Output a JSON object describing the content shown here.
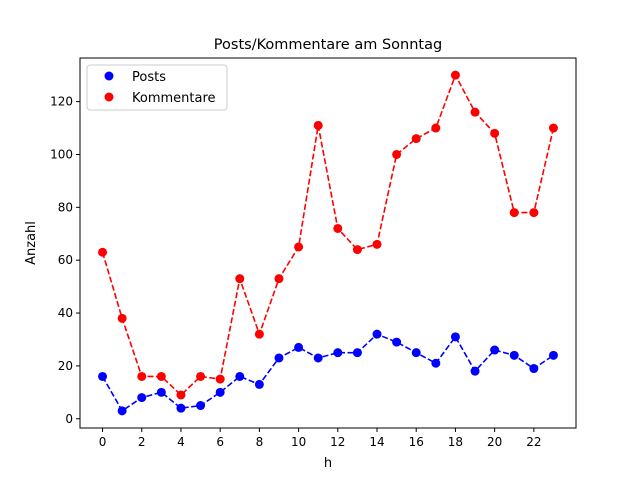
{
  "chart_data": {
    "type": "line",
    "title": "Posts/Kommentare am Sonntag",
    "xlabel": "h",
    "ylabel": "Anzahl",
    "x": [
      0,
      1,
      2,
      3,
      4,
      5,
      6,
      7,
      8,
      9,
      10,
      11,
      12,
      13,
      14,
      15,
      16,
      17,
      18,
      19,
      20,
      21,
      22,
      23
    ],
    "xticks": [
      0,
      2,
      4,
      6,
      8,
      10,
      12,
      14,
      16,
      18,
      20,
      22
    ],
    "yticks": [
      0,
      20,
      40,
      60,
      80,
      100,
      120
    ],
    "xlim": [
      -1.15,
      24.15
    ],
    "ylim": [
      -3.5,
      136.5
    ],
    "grid": false,
    "legend_position": "top-left",
    "series": [
      {
        "name": "Posts",
        "color": "#0000ff",
        "values": [
          16,
          3,
          8,
          10,
          4,
          5,
          10,
          16,
          13,
          23,
          27,
          23,
          25,
          25,
          32,
          29,
          25,
          21,
          31,
          18,
          26,
          24,
          19,
          24
        ]
      },
      {
        "name": "Kommentare",
        "color": "#ff0000",
        "values": [
          63,
          38,
          16,
          16,
          9,
          16,
          15,
          53,
          32,
          53,
          65,
          111,
          72,
          64,
          66,
          100,
          106,
          110,
          130,
          116,
          108,
          78,
          78,
          110
        ]
      }
    ]
  }
}
